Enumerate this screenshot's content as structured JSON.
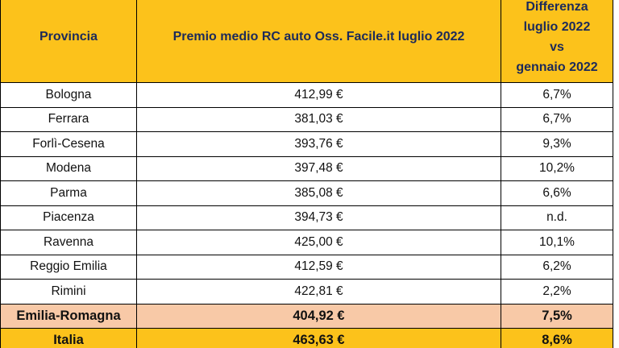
{
  "table": {
    "headers": {
      "provincia": "Provincia",
      "premio": "Premio medio RC auto Oss. Facile.it luglio 2022",
      "diff_line1": "Differenza",
      "diff_line2": "luglio 2022",
      "diff_line3": "vs",
      "diff_line4": "gennaio 2022"
    },
    "rows": [
      {
        "provincia": "Bologna",
        "premio": "412,99 €",
        "differenza": "6,7%"
      },
      {
        "provincia": "Ferrara",
        "premio": "381,03 €",
        "differenza": "6,7%"
      },
      {
        "provincia": "Forlì-Cesena",
        "premio": "393,76 €",
        "differenza": "9,3%"
      },
      {
        "provincia": "Modena",
        "premio": "397,48 €",
        "differenza": "10,2%"
      },
      {
        "provincia": "Parma",
        "premio": "385,08 €",
        "differenza": "6,6%"
      },
      {
        "provincia": "Piacenza",
        "premio": "394,73 €",
        "differenza": "n.d."
      },
      {
        "provincia": "Ravenna",
        "premio": "425,00 €",
        "differenza": "10,1%"
      },
      {
        "provincia": "Reggio Emilia",
        "premio": "412,59 €",
        "differenza": "6,2%"
      },
      {
        "provincia": "Rimini",
        "premio": "422,81 €",
        "differenza": "2,2%"
      }
    ],
    "region": {
      "provincia": "Emilia-Romagna",
      "premio": "404,92 €",
      "differenza": "7,5%"
    },
    "national": {
      "provincia": "Italia",
      "premio": "463,63 €",
      "differenza": "8,6%"
    }
  },
  "colors": {
    "header_bg": "#fcc21b",
    "header_text": "#1c2a5a",
    "region_bg": "#f8c9a7",
    "national_bg": "#fcc21b"
  }
}
